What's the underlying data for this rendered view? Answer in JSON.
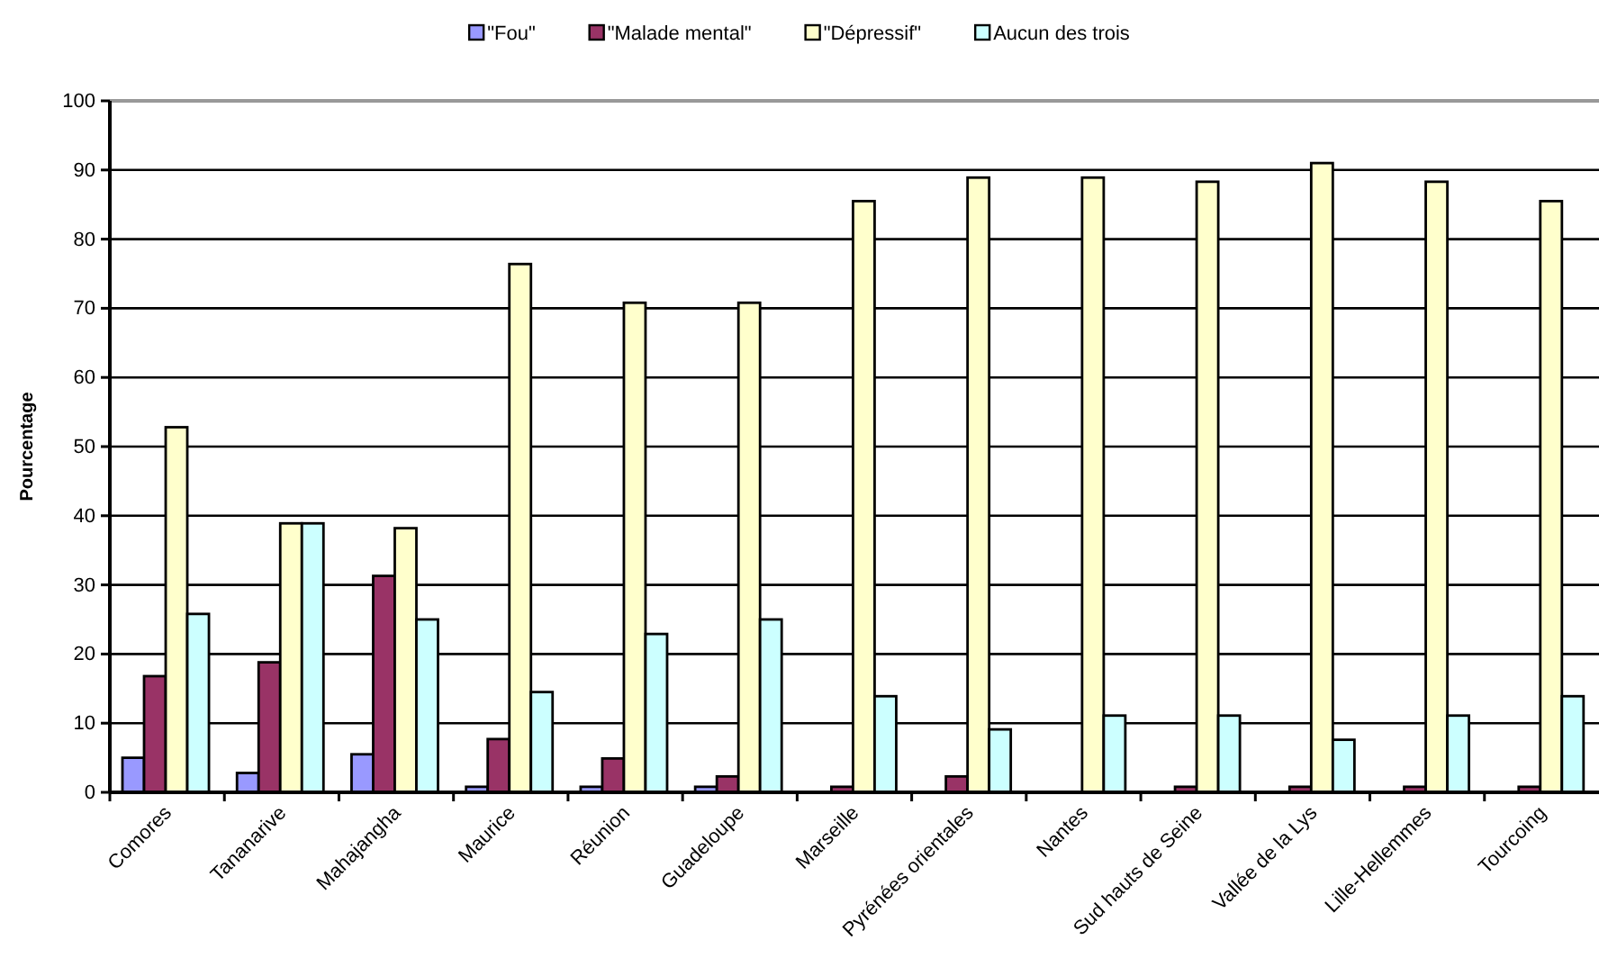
{
  "chart_data": {
    "type": "bar",
    "ylabel": "Pourcentage",
    "categories": [
      "Comores",
      "Tananarive",
      "Mahajangha",
      "Maurice",
      "Réunion",
      "Guadeloupe",
      "Marseille",
      "Pyrénées orientales",
      "Nantes",
      "Sud hauts de Seine",
      "Vallée de la Lys",
      "Lille-Hellemmes",
      "Tourcoing"
    ],
    "series": [
      {
        "name": "\"Fou\"",
        "color": "#9999ff",
        "values": [
          5,
          2.8,
          5.5,
          0.8,
          0.8,
          0.8,
          null,
          null,
          null,
          null,
          null,
          null,
          null
        ]
      },
      {
        "name": "\"Malade mental\"",
        "color": "#993366",
        "values": [
          16.8,
          18.8,
          31.3,
          7.7,
          4.9,
          2.3,
          0.8,
          2.3,
          null,
          0.8,
          0.8,
          0.8,
          0.8
        ]
      },
      {
        "name": "\"Dépressif\"",
        "color": "#ffffcc",
        "values": [
          52.8,
          38.9,
          38.2,
          76.4,
          70.8,
          70.8,
          85.5,
          88.9,
          88.9,
          88.3,
          91,
          88.3,
          85.5
        ]
      },
      {
        "name": "Aucun des trois",
        "color": "#ccffff",
        "values": [
          25.8,
          38.9,
          25,
          14.5,
          22.9,
          25,
          13.9,
          9.1,
          11.1,
          11.1,
          7.6,
          11.1,
          13.9
        ]
      }
    ],
    "ylim": [
      0,
      100
    ],
    "yticks": [
      0,
      10,
      20,
      30,
      40,
      50,
      60,
      70,
      80,
      90,
      100
    ],
    "grid": "y",
    "legend": "top"
  }
}
